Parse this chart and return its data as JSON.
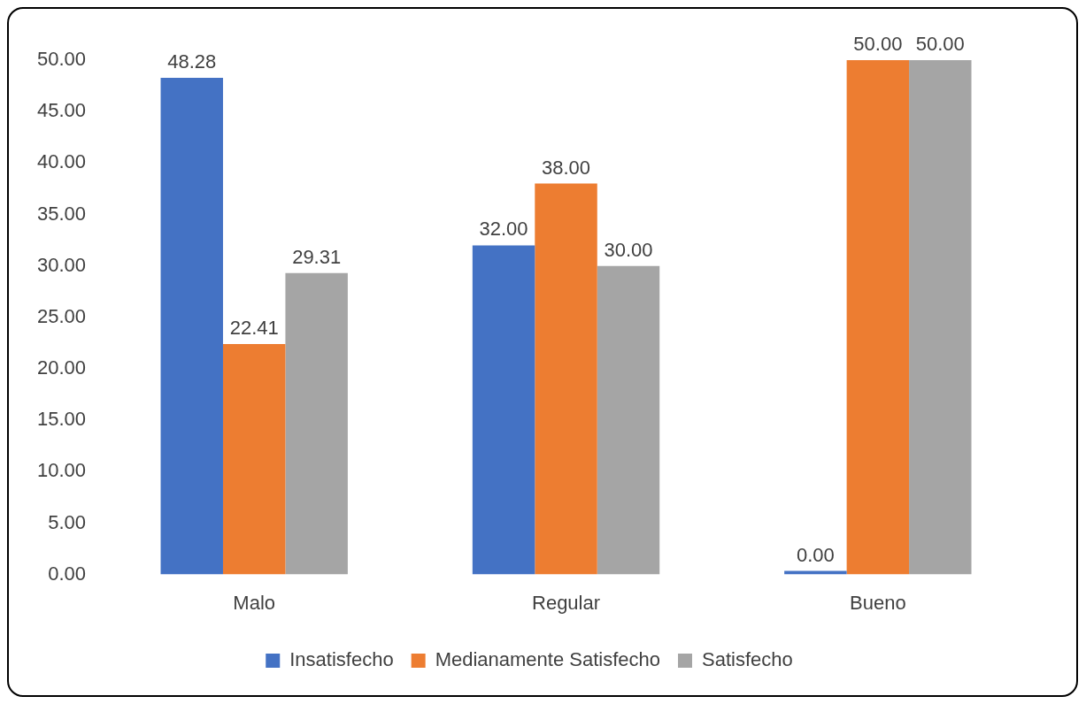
{
  "chart_data": {
    "type": "bar",
    "categories": [
      "Malo",
      "Regular",
      "Bueno"
    ],
    "series": [
      {
        "name": "Insatisfecho",
        "color": "#4472c4",
        "values": [
          48.28,
          32,
          0
        ],
        "value_labels": [
          "48.28",
          "32.00",
          "0.00"
        ]
      },
      {
        "name": "Medianamente Satisfecho",
        "color": "#ed7d31",
        "values": [
          22.41,
          38,
          50
        ],
        "value_labels": [
          "22.41",
          "38.00",
          "50.00"
        ]
      },
      {
        "name": "Satisfecho",
        "color": "#a5a5a5",
        "values": [
          29.31,
          30,
          50
        ],
        "value_labels": [
          "29.31",
          "30.00",
          "50.00"
        ]
      }
    ],
    "ylim": [
      0,
      50
    ],
    "yticks": [
      {
        "value": 0,
        "label": "0.00"
      },
      {
        "value": 5,
        "label": "5.00"
      },
      {
        "value": 10,
        "label": "10.00"
      },
      {
        "value": 15,
        "label": "15.00"
      },
      {
        "value": 20,
        "label": "20.00"
      },
      {
        "value": 25,
        "label": "25.00"
      },
      {
        "value": 30,
        "label": "30.00"
      },
      {
        "value": 35,
        "label": "35.00"
      },
      {
        "value": 40,
        "label": "40.00"
      },
      {
        "value": 45,
        "label": "45.00"
      },
      {
        "value": 50,
        "label": "50.00"
      }
    ],
    "grid": false,
    "legend": "bottom"
  }
}
